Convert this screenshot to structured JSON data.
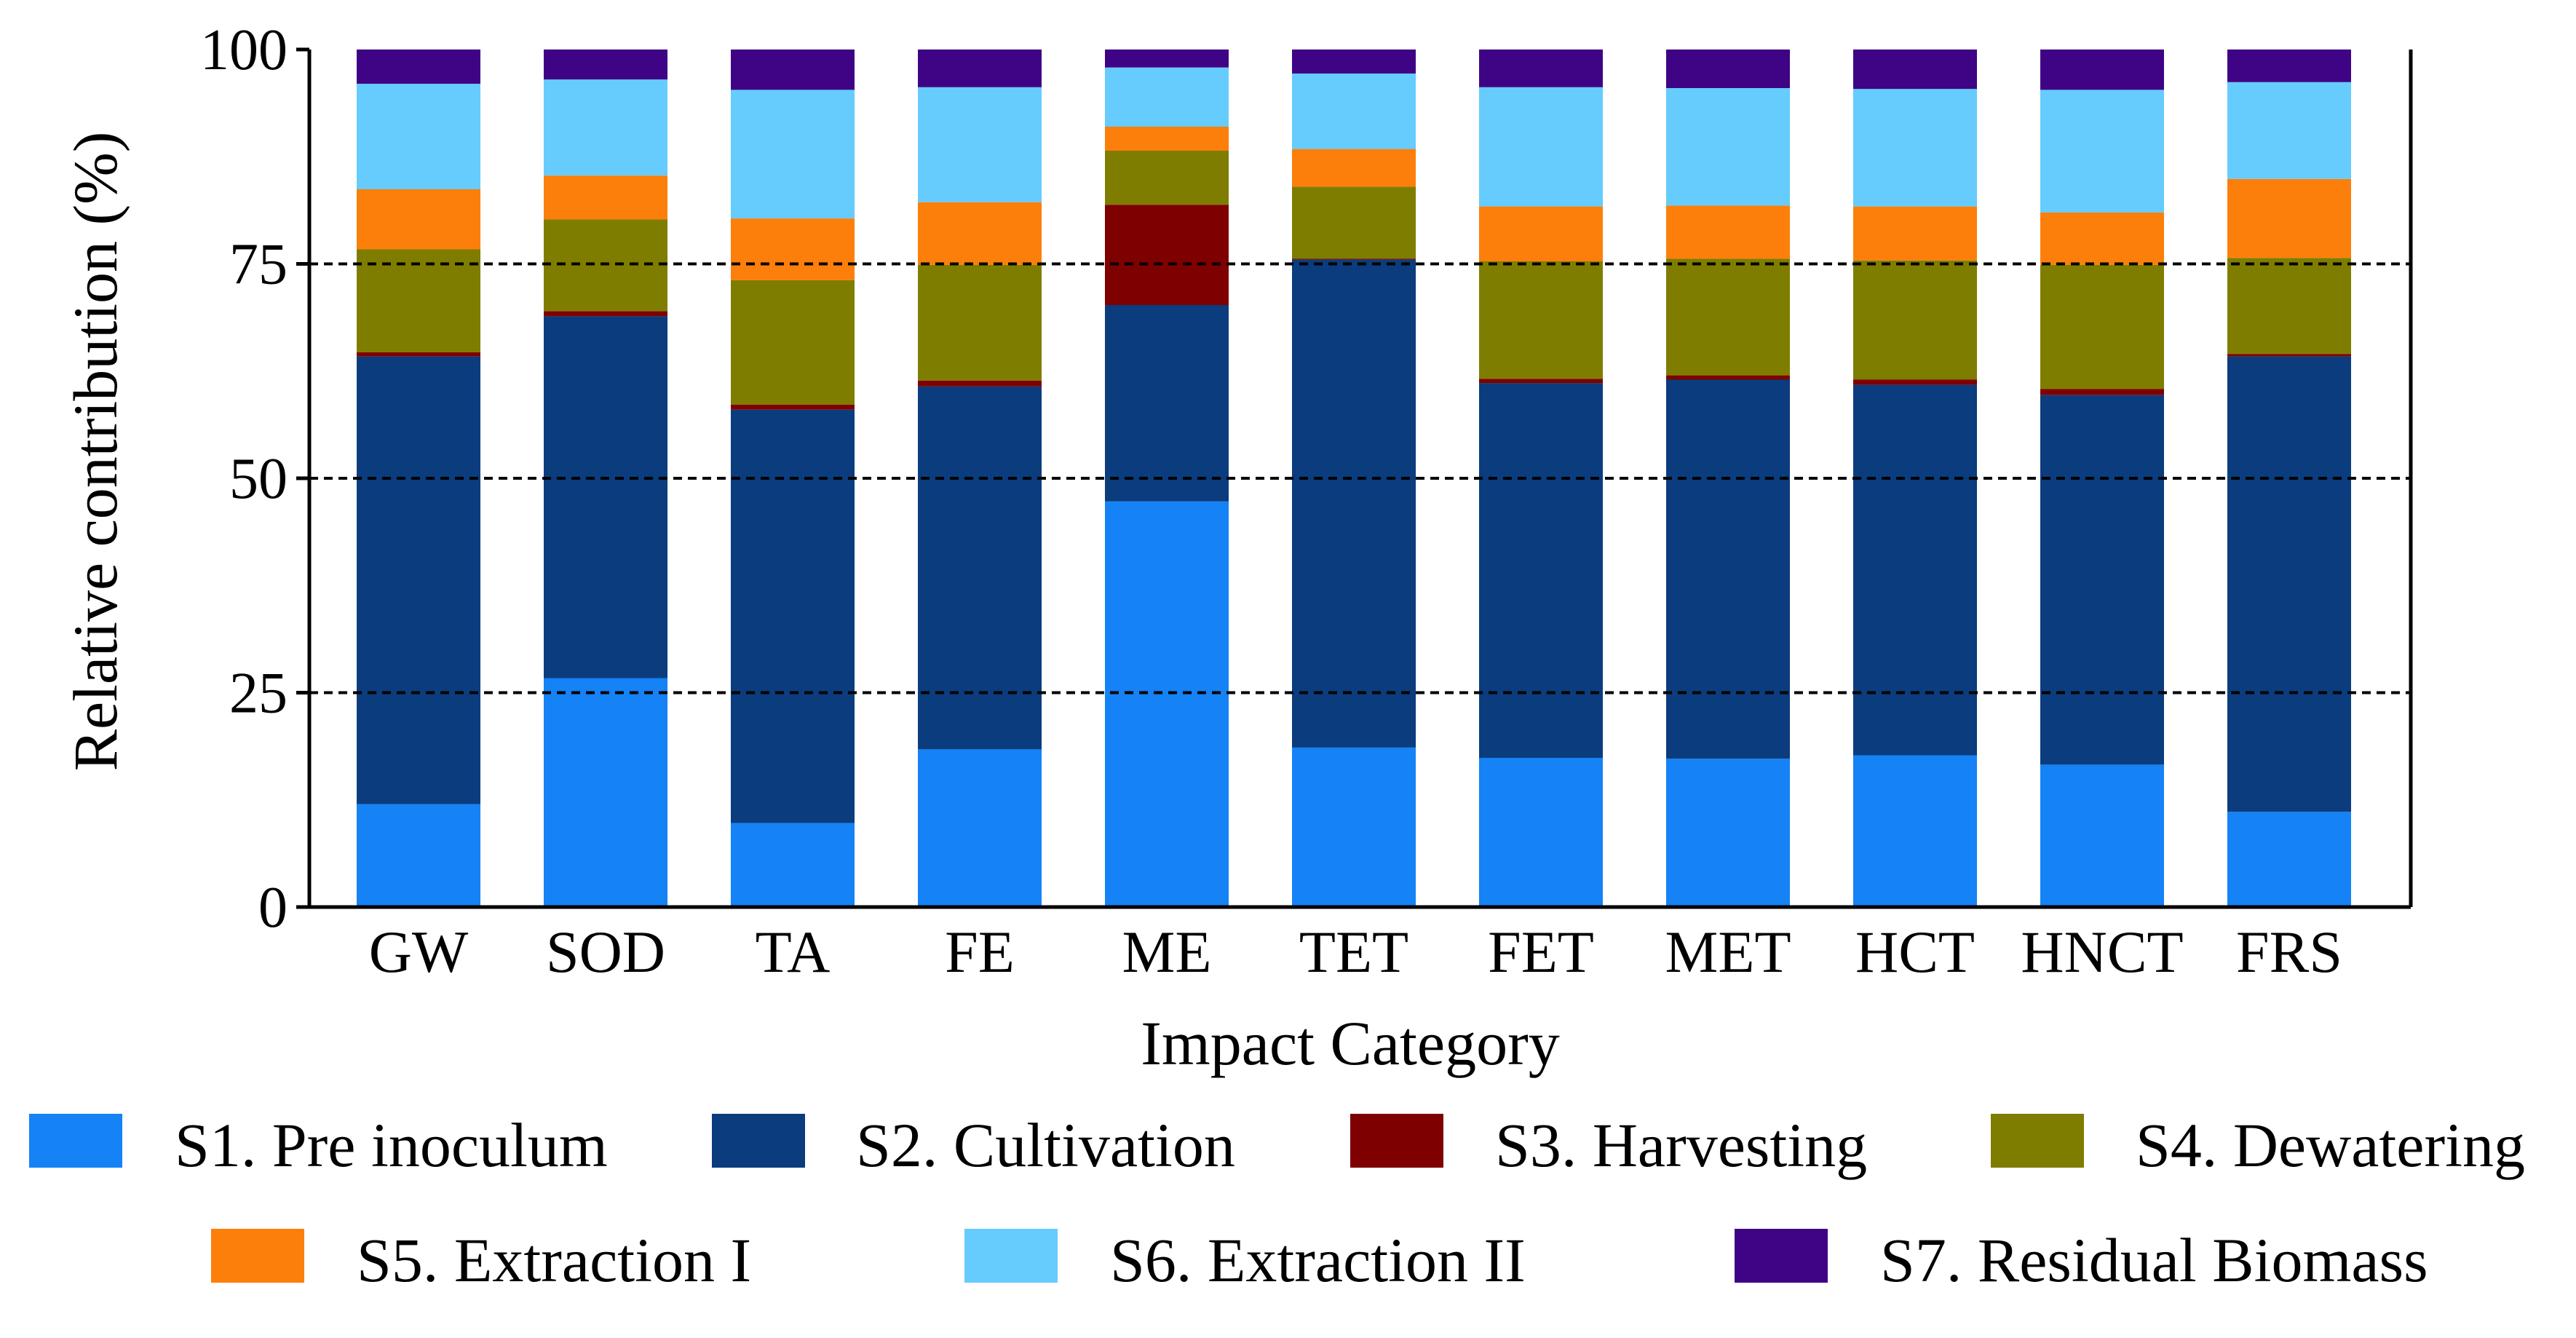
{
  "chart_data": {
    "type": "bar",
    "stacked": true,
    "xlabel": "Impact Category",
    "ylabel": "Relative contribution (%)",
    "ylim": [
      0,
      100
    ],
    "yticks": [
      0,
      25,
      50,
      75,
      100
    ],
    "gridlines": {
      "style": "dashed",
      "values": [
        25,
        50,
        75
      ]
    },
    "legend_position": "bottom",
    "categories": [
      "GW",
      "SOD",
      "TA",
      "FE",
      "ME",
      "TET",
      "FET",
      "MET",
      "HCT",
      "HNCT",
      "FRS"
    ],
    "series": [
      {
        "name": "S1. Pre inoculum",
        "color": "#1582F5",
        "values": [
          12.0,
          26.7,
          9.8,
          18.4,
          47.3,
          18.6,
          17.4,
          17.3,
          17.7,
          16.6,
          11.1
        ]
      },
      {
        "name": "S2. Cultivation",
        "color": "#0A3C7E",
        "values": [
          52.2,
          42.2,
          48.2,
          42.3,
          22.9,
          56.9,
          43.7,
          44.2,
          43.2,
          43.1,
          53.1
        ]
      },
      {
        "name": "S3. Harvesting",
        "color": "#7E0000",
        "values": [
          0.5,
          0.6,
          0.6,
          0.7,
          11.7,
          0.1,
          0.5,
          0.5,
          0.6,
          0.7,
          0.3
        ]
      },
      {
        "name": "S4. Dewatering",
        "color": "#7F7D00",
        "values": [
          12.0,
          10.7,
          14.5,
          13.5,
          6.3,
          8.4,
          13.7,
          13.6,
          13.9,
          14.5,
          11.2
        ]
      },
      {
        "name": "S5. Extraction I",
        "color": "#FC7F0B",
        "values": [
          7.0,
          5.1,
          7.2,
          7.3,
          2.8,
          4.4,
          6.4,
          6.2,
          6.3,
          6.1,
          9.2
        ]
      },
      {
        "name": "S6. Extraction II",
        "color": "#65CCFD",
        "values": [
          12.3,
          11.2,
          15.0,
          13.4,
          6.9,
          8.8,
          13.9,
          13.7,
          13.7,
          14.3,
          11.3
        ]
      },
      {
        "name": "S7. Residual Biomass",
        "color": "#3F0485",
        "values": [
          4.0,
          3.5,
          4.7,
          4.4,
          2.1,
          2.8,
          4.4,
          4.5,
          4.6,
          4.7,
          3.8
        ]
      }
    ]
  }
}
